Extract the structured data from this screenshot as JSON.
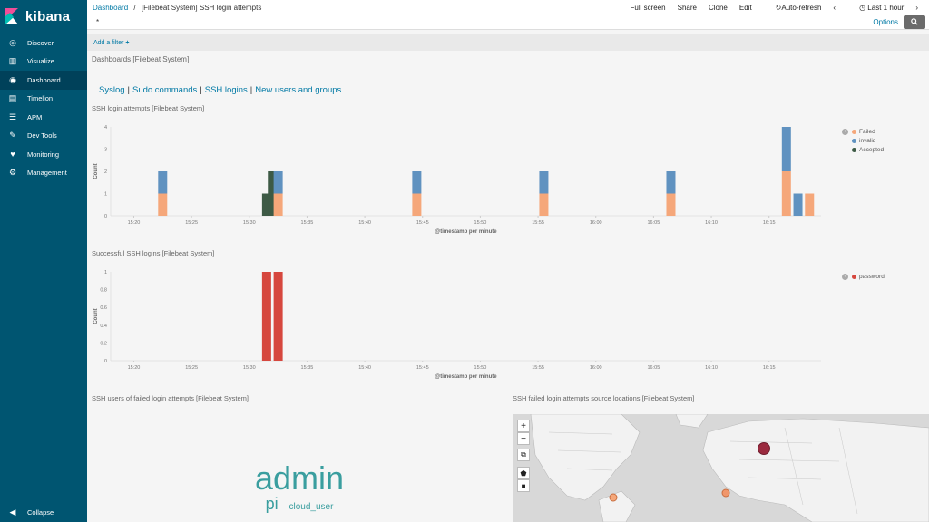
{
  "app": {
    "name": "kibana"
  },
  "sidebar": {
    "items": [
      {
        "label": "Discover",
        "icon": "compass-icon"
      },
      {
        "label": "Visualize",
        "icon": "bar-chart-icon"
      },
      {
        "label": "Dashboard",
        "icon": "dashboard-icon"
      },
      {
        "label": "Timelion",
        "icon": "timelion-icon"
      },
      {
        "label": "APM",
        "icon": "apm-icon"
      },
      {
        "label": "Dev Tools",
        "icon": "wrench-icon"
      },
      {
        "label": "Monitoring",
        "icon": "heartbeat-icon"
      },
      {
        "label": "Management",
        "icon": "gear-icon"
      }
    ],
    "active": "Dashboard",
    "collapse_label": "Collapse"
  },
  "breadcrumb": {
    "root": "Dashboard",
    "sep": "/",
    "current": "[Filebeat System] SSH login attempts"
  },
  "toolbar": {
    "full_screen": "Full screen",
    "share": "Share",
    "clone": "Clone",
    "edit": "Edit",
    "auto_refresh": "Auto-refresh",
    "time_range": "Last 1 hour"
  },
  "search": {
    "query": "*",
    "options_label": "Options"
  },
  "filter": {
    "add_label": "Add a filter"
  },
  "dashboard_title": "Dashboards [Filebeat System]",
  "links": [
    "Syslog",
    "Sudo commands",
    "SSH logins",
    "New users and groups"
  ],
  "panels": {
    "attempts_title": "SSH login attempts [Filebeat System]",
    "success_title": "Successful SSH logins [Filebeat System]",
    "users_title": "SSH users of failed login attempts [Filebeat System]",
    "locations_title": "SSH failed login attempts source locations [Filebeat System]"
  },
  "tag_cloud": {
    "words": [
      "admin",
      "pi",
      "cloud_user"
    ]
  },
  "chart_data": [
    {
      "type": "bar",
      "title": "SSH login attempts [Filebeat System]",
      "xlabel": "@timestamp per minute",
      "ylabel": "Count",
      "ylim": [
        0,
        4
      ],
      "yticks": [
        "0",
        "1",
        "2",
        "3",
        "4"
      ],
      "xticks": [
        "15:20",
        "15:25",
        "15:30",
        "15:35",
        "15:40",
        "15:45",
        "15:50",
        "15:55",
        "16:00",
        "16:05",
        "16:10",
        "16:15"
      ],
      "x_minutes": [
        22.5,
        31.5,
        32,
        32.5,
        44.5,
        55.5,
        66.5,
        76.5,
        77.5,
        78.5
      ],
      "series": [
        {
          "name": "Failed",
          "color": "#f5a77a",
          "values": [
            1,
            0,
            0,
            1,
            1,
            1,
            1,
            2,
            0,
            1
          ]
        },
        {
          "name": "invalid",
          "color": "#6092c0",
          "values": [
            1,
            0,
            0,
            1,
            1,
            1,
            1,
            2,
            1,
            0
          ]
        },
        {
          "name": "Accepted",
          "color": "#3d5a45",
          "values": [
            0,
            1,
            2,
            0,
            0,
            0,
            0,
            0,
            0,
            0
          ]
        }
      ],
      "legend": "right"
    },
    {
      "type": "bar",
      "title": "Successful SSH logins [Filebeat System]",
      "xlabel": "@timestamp per minute",
      "ylabel": "Count",
      "ylim": [
        0,
        1
      ],
      "yticks": [
        "0",
        "0.2",
        "0.4",
        "0.6",
        "0.8",
        "1"
      ],
      "xticks": [
        "15:20",
        "15:25",
        "15:30",
        "15:35",
        "15:40",
        "15:45",
        "15:50",
        "15:55",
        "16:00",
        "16:05",
        "16:10",
        "16:15"
      ],
      "x_minutes": [
        31.5,
        32.5
      ],
      "series": [
        {
          "name": "password",
          "color": "#d6473e",
          "values": [
            1,
            1
          ]
        }
      ],
      "legend": "right"
    }
  ],
  "map": {
    "controls": [
      "+",
      "−"
    ],
    "points": [
      {
        "label": "Europe",
        "color": "#9b2a3f"
      },
      {
        "label": "US East",
        "color": "#f5a77a"
      },
      {
        "label": "Mediterranean",
        "color": "#f0966b"
      }
    ]
  }
}
